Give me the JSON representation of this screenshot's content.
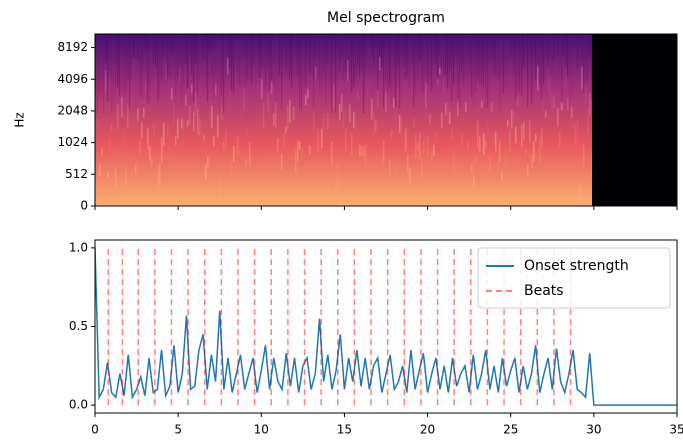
{
  "chart_data": [
    {
      "type": "spectrogram",
      "title": "Mel spectrogram",
      "ylabel": "Hz",
      "yscale": "symlog",
      "ylim": [
        0,
        11025
      ],
      "yticks": [
        0,
        512,
        1024,
        2048,
        4096,
        8192
      ],
      "xlim": [
        0,
        35
      ],
      "xticks": [
        0,
        5,
        10,
        15,
        20,
        25,
        30,
        35
      ]
    },
    {
      "type": "line",
      "xlim": [
        0,
        35
      ],
      "xticks": [
        0,
        5,
        10,
        15,
        20,
        25,
        30,
        35
      ],
      "ylim": [
        -0.05,
        1.05
      ],
      "yticks": [
        {
          "value": 0,
          "label": "0.0"
        },
        {
          "value": 0.5,
          "label": "0.5"
        },
        {
          "value": 1,
          "label": "1.0"
        }
      ],
      "legend": "upper right",
      "series": [
        {
          "name": "Onset strength",
          "color": "#1f77b4",
          "x": [
            0,
            0.25,
            0.5,
            0.75,
            1,
            1.25,
            1.5,
            1.75,
            2,
            2.25,
            2.5,
            2.75,
            3,
            3.25,
            3.5,
            3.75,
            4,
            4.25,
            4.5,
            4.75,
            5,
            5.25,
            5.5,
            5.75,
            6,
            6.25,
            6.5,
            6.75,
            7,
            7.25,
            7.5,
            7.75,
            8,
            8.25,
            8.5,
            8.75,
            9,
            9.25,
            9.5,
            9.75,
            10,
            10.25,
            10.5,
            10.75,
            11,
            11.25,
            11.5,
            11.75,
            12,
            12.25,
            12.5,
            12.75,
            13,
            13.25,
            13.5,
            13.75,
            14,
            14.25,
            14.5,
            14.75,
            15,
            15.25,
            15.5,
            15.75,
            16,
            16.25,
            16.5,
            16.75,
            17,
            17.25,
            17.5,
            17.75,
            18,
            18.25,
            18.5,
            18.75,
            19,
            19.25,
            19.5,
            19.75,
            20,
            20.25,
            20.5,
            20.75,
            21,
            21.25,
            21.5,
            21.75,
            22,
            22.25,
            22.5,
            22.75,
            23,
            23.25,
            23.5,
            23.75,
            24,
            24.25,
            24.5,
            24.75,
            25,
            25.25,
            25.5,
            25.75,
            26,
            26.25,
            26.5,
            26.75,
            27,
            27.25,
            27.5,
            27.75,
            28,
            28.25,
            28.5,
            28.75,
            29,
            29.25,
            29.5,
            29.75,
            30,
            35
          ],
          "values": [
            1.0,
            0.05,
            0.1,
            0.27,
            0.08,
            0.05,
            0.2,
            0.06,
            0.32,
            0.05,
            0.1,
            0.18,
            0.06,
            0.3,
            0.08,
            0.1,
            0.35,
            0.06,
            0.12,
            0.38,
            0.08,
            0.2,
            0.57,
            0.1,
            0.12,
            0.35,
            0.45,
            0.1,
            0.32,
            0.15,
            0.6,
            0.1,
            0.3,
            0.08,
            0.2,
            0.32,
            0.1,
            0.2,
            0.3,
            0.08,
            0.22,
            0.38,
            0.1,
            0.3,
            0.15,
            0.1,
            0.33,
            0.12,
            0.3,
            0.08,
            0.25,
            0.3,
            0.1,
            0.2,
            0.55,
            0.15,
            0.32,
            0.1,
            0.22,
            0.45,
            0.1,
            0.3,
            0.15,
            0.35,
            0.12,
            0.3,
            0.1,
            0.25,
            0.3,
            0.08,
            0.2,
            0.32,
            0.1,
            0.15,
            0.25,
            0.08,
            0.35,
            0.1,
            0.22,
            0.33,
            0.08,
            0.2,
            0.3,
            0.1,
            0.25,
            0.08,
            0.3,
            0.12,
            0.2,
            0.25,
            0.08,
            0.32,
            0.1,
            0.2,
            0.35,
            0.1,
            0.25,
            0.08,
            0.3,
            0.12,
            0.22,
            0.3,
            0.08,
            0.25,
            0.1,
            0.2,
            0.38,
            0.08,
            0.2,
            0.3,
            0.1,
            0.36,
            0.15,
            0.08,
            0.2,
            0.35,
            0.1,
            0.08,
            0.05,
            0.33,
            0,
            0
          ]
        },
        {
          "name": "Beats",
          "type": "vlines",
          "color": "#ff0000",
          "linestyle": "dashed",
          "x": [
            0.8,
            1.65,
            2.6,
            3.6,
            4.6,
            5.6,
            6.6,
            7.6,
            8.6,
            9.6,
            10.6,
            11.6,
            12.6,
            13.6,
            14.6,
            15.6,
            16.6,
            17.6,
            18.6,
            19.6,
            20.6,
            21.6,
            22.6,
            23.6,
            24.6,
            25.6,
            26.6,
            27.6,
            28.6
          ]
        }
      ]
    }
  ]
}
